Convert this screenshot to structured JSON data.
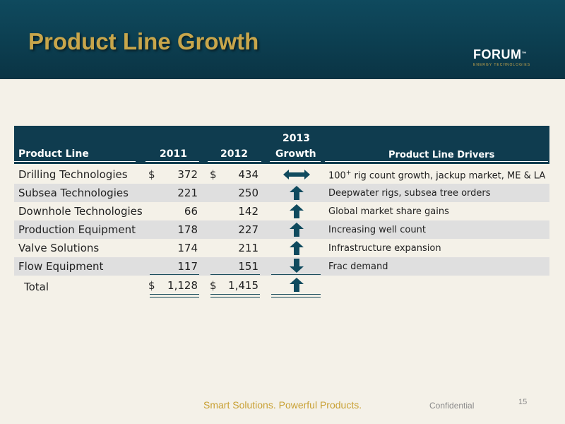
{
  "title": "Product Line Growth",
  "logo": {
    "word": "FORUM",
    "tm": "™",
    "sub": "ENERGY TECHNOLOGIES"
  },
  "table": {
    "headers": {
      "product_line": "Product Line",
      "y2011": "2011",
      "y2012": "2012",
      "growth_top": "2013",
      "growth_bottom": "Growth",
      "drivers": "Product Line Drivers"
    },
    "currency": "$",
    "rows": [
      {
        "name": "Drilling Technologies",
        "v2011": "372",
        "v2012": "434",
        "trend": "flat",
        "driver_main": "100",
        "driver_sup": "+",
        "driver_rest": " rig count growth, jackup market, ME & LA"
      },
      {
        "name": "Subsea Technologies",
        "v2011": "221",
        "v2012": "250",
        "trend": "up",
        "driver": "Deepwater rigs, subsea tree orders"
      },
      {
        "name": "Downhole Technologies",
        "v2011": "66",
        "v2012": "142",
        "trend": "up",
        "driver": "Global market share gains"
      },
      {
        "name": "Production Equipment",
        "v2011": "178",
        "v2012": "227",
        "trend": "up",
        "driver": "Increasing well count"
      },
      {
        "name": "Valve Solutions",
        "v2011": "174",
        "v2012": "211",
        "trend": "up",
        "driver": "Infrastructure expansion"
      },
      {
        "name": "Flow Equipment",
        "v2011": "117",
        "v2012": "151",
        "trend": "down",
        "driver": "Frac demand"
      }
    ],
    "total": {
      "label": "Total",
      "v2011": "1,128",
      "v2012": "1,415",
      "trend": "up"
    }
  },
  "footer": {
    "tagline": "Smart Solutions. Powerful Products.",
    "confidential": "Confidential",
    "page": "15"
  },
  "colors": {
    "header_bg": "#0f3c4f",
    "title_gold": "#c8a64b",
    "arrow": "#0f4a5e",
    "row_shade": "#dfdfdf",
    "page_bg": "#f4f1e8"
  }
}
